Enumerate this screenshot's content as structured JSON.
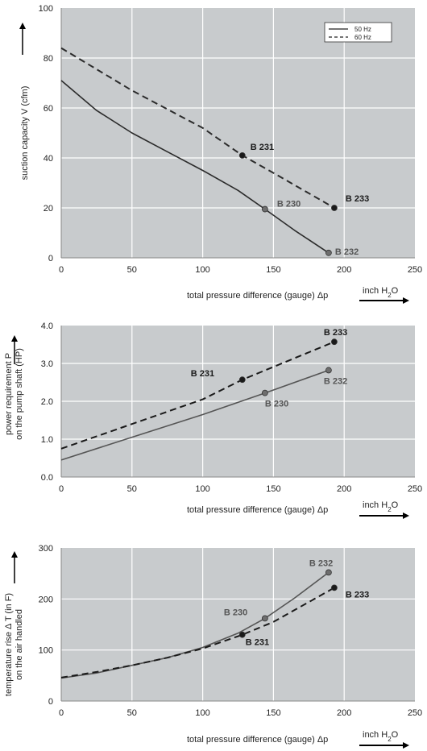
{
  "chart_data": [
    {
      "type": "line",
      "xlabel": "total pressure difference (gauge)  Δp",
      "x_unit": "inch H2O",
      "ylabel": "suction capacity V (cfm)",
      "xlim": [
        0,
        250
      ],
      "ylim": [
        0,
        100
      ],
      "x_ticks": [
        "0",
        "50",
        "100",
        "150",
        "200",
        "250"
      ],
      "y_ticks": [
        "0",
        "20",
        "40",
        "60",
        "80",
        "100"
      ],
      "grid": true,
      "legend": {
        "placement": "top-right",
        "entries": [
          "50 Hz",
          "60 Hz"
        ]
      },
      "series": [
        {
          "name": "50 Hz",
          "style": "solid",
          "color": "#2b2b2b",
          "x": [
            0,
            25,
            50,
            75,
            100,
            125,
            144,
            165,
            189
          ],
          "y": [
            71,
            59,
            50,
            42.5,
            35,
            27,
            19.5,
            11,
            2
          ]
        },
        {
          "name": "60 Hz",
          "style": "dashed",
          "color": "#2b2b2b",
          "x": [
            0,
            50,
            100,
            128,
            150,
            193
          ],
          "y": [
            84,
            67,
            52,
            41,
            34,
            20
          ]
        }
      ],
      "points": [
        {
          "label": "B 231",
          "x": 128,
          "y": 41,
          "tone": "dark"
        },
        {
          "label": "B 230",
          "x": 144,
          "y": 19.5,
          "tone": "grey"
        },
        {
          "label": "B 233",
          "x": 193,
          "y": 20,
          "tone": "dark"
        },
        {
          "label": "B 232",
          "x": 189,
          "y": 2,
          "tone": "grey"
        }
      ]
    },
    {
      "type": "line",
      "xlabel": "total pressure difference (gauge)  Δp",
      "x_unit": "inch H2O",
      "ylabel": "power requirement P",
      "ylabel2": "on the pump shaft (HP)",
      "xlim": [
        0,
        250
      ],
      "ylim": [
        0,
        4
      ],
      "x_ticks": [
        "0",
        "50",
        "100",
        "150",
        "200",
        "250"
      ],
      "y_ticks": [
        "0.0",
        "1.0",
        "2.0",
        "3.0",
        "4.0"
      ],
      "grid": true,
      "series": [
        {
          "name": "50 Hz",
          "style": "solid",
          "color": "#555555",
          "x": [
            0,
            50,
            100,
            144,
            189
          ],
          "y": [
            0.45,
            1.05,
            1.65,
            2.22,
            2.82
          ]
        },
        {
          "name": "60 Hz",
          "style": "dashed",
          "color": "#1a1a1a",
          "x": [
            0,
            50,
            100,
            128,
            193
          ],
          "y": [
            0.75,
            1.4,
            2.05,
            2.57,
            3.57
          ]
        }
      ],
      "points": [
        {
          "label": "B 233",
          "x": 193,
          "y": 3.57,
          "tone": "dark"
        },
        {
          "label": "B 231",
          "x": 128,
          "y": 2.57,
          "tone": "dark"
        },
        {
          "label": "B 232",
          "x": 189,
          "y": 2.82,
          "tone": "grey"
        },
        {
          "label": "B 230",
          "x": 144,
          "y": 2.22,
          "tone": "grey"
        }
      ]
    },
    {
      "type": "line",
      "xlabel": "total pressure difference (gauge)  Δp",
      "x_unit": "inch H2O",
      "ylabel": "temperature rise Δ T  (in F)",
      "ylabel2": "on the air handled",
      "xlim": [
        0,
        250
      ],
      "ylim": [
        0,
        300
      ],
      "x_ticks": [
        "0",
        "50",
        "100",
        "150",
        "200",
        "250"
      ],
      "y_ticks": [
        "0",
        "100",
        "200",
        "300"
      ],
      "grid": true,
      "series": [
        {
          "name": "50 Hz",
          "style": "solid",
          "color": "#555555",
          "x": [
            0,
            25,
            50,
            75,
            100,
            125,
            144,
            165,
            189
          ],
          "y": [
            45,
            55,
            70,
            85,
            105,
            133,
            162,
            202,
            252
          ]
        },
        {
          "name": "60 Hz",
          "style": "dashed",
          "color": "#1a1a1a",
          "x": [
            0,
            25,
            50,
            75,
            100,
            128,
            150,
            193
          ],
          "y": [
            46,
            57,
            70,
            85,
            103,
            130,
            155,
            222
          ]
        }
      ],
      "points": [
        {
          "label": "B 232",
          "x": 189,
          "y": 252,
          "tone": "grey"
        },
        {
          "label": "B 233",
          "x": 193,
          "y": 222,
          "tone": "dark"
        },
        {
          "label": "B 230",
          "x": 144,
          "y": 162,
          "tone": "grey"
        },
        {
          "label": "B 231",
          "x": 128,
          "y": 130,
          "tone": "dark"
        }
      ]
    }
  ]
}
